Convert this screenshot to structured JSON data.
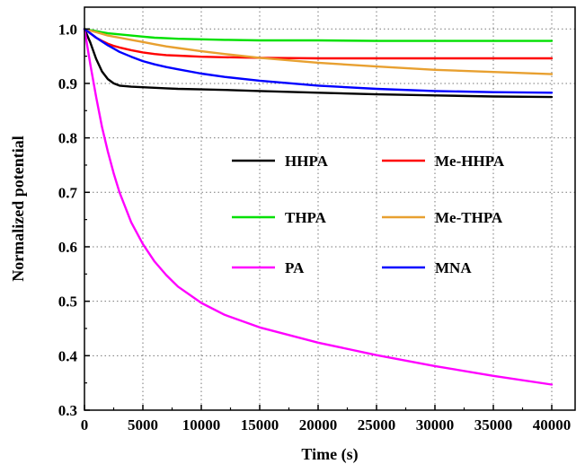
{
  "chart_data": {
    "type": "line",
    "xlabel": "Time (s)",
    "ylabel": "Normalized potential",
    "xlim": [
      0,
      42000
    ],
    "ylim": [
      0.3,
      1.04
    ],
    "grid": true,
    "grid_style": "dotted",
    "legend_placement": "center-right, two columns",
    "x_ticks": [
      0,
      5000,
      10000,
      15000,
      20000,
      25000,
      30000,
      35000,
      40000
    ],
    "x_tick_labels": [
      "0",
      "5000",
      "10000",
      "15000",
      "20000",
      "25000",
      "30000",
      "35000",
      "40000"
    ],
    "y_ticks": [
      0.3,
      0.4,
      0.5,
      0.6,
      0.7,
      0.8,
      0.9,
      1.0
    ],
    "y_tick_labels": [
      "0.3",
      "0.4",
      "0.5",
      "0.6",
      "0.7",
      "0.8",
      "0.9",
      "1.0"
    ],
    "x": [
      0,
      500,
      1000,
      1500,
      2000,
      2500,
      3000,
      4000,
      5000,
      6000,
      7000,
      8000,
      10000,
      12000,
      15000,
      20000,
      25000,
      30000,
      35000,
      40000
    ],
    "series": [
      {
        "name": "HHPA",
        "color": "#000000",
        "values": [
          1.0,
          0.975,
          0.945,
          0.922,
          0.908,
          0.9,
          0.896,
          0.894,
          0.893,
          0.892,
          0.891,
          0.89,
          0.889,
          0.888,
          0.886,
          0.883,
          0.88,
          0.878,
          0.876,
          0.875
        ]
      },
      {
        "name": "Me-HHPA",
        "color": "#ff0000",
        "values": [
          1.0,
          0.992,
          0.984,
          0.978,
          0.973,
          0.969,
          0.966,
          0.961,
          0.957,
          0.954,
          0.952,
          0.951,
          0.949,
          0.948,
          0.947,
          0.946,
          0.946,
          0.946,
          0.946,
          0.946
        ]
      },
      {
        "name": "THPA",
        "color": "#00e000",
        "values": [
          1.0,
          0.998,
          0.996,
          0.994,
          0.992,
          0.991,
          0.99,
          0.988,
          0.986,
          0.984,
          0.983,
          0.982,
          0.981,
          0.98,
          0.979,
          0.979,
          0.978,
          0.978,
          0.978,
          0.978
        ]
      },
      {
        "name": "Me-THPA",
        "color": "#e8a030",
        "values": [
          1.0,
          0.997,
          0.994,
          0.991,
          0.988,
          0.986,
          0.984,
          0.98,
          0.976,
          0.972,
          0.968,
          0.965,
          0.959,
          0.954,
          0.947,
          0.938,
          0.931,
          0.925,
          0.921,
          0.917
        ]
      },
      {
        "name": "PA",
        "color": "#ff00ff",
        "values": [
          1.0,
          0.935,
          0.875,
          0.82,
          0.775,
          0.735,
          0.7,
          0.645,
          0.605,
          0.573,
          0.548,
          0.527,
          0.497,
          0.475,
          0.452,
          0.424,
          0.401,
          0.381,
          0.363,
          0.347
        ]
      },
      {
        "name": "MNA",
        "color": "#0000ff",
        "values": [
          1.0,
          0.992,
          0.984,
          0.977,
          0.97,
          0.964,
          0.958,
          0.949,
          0.941,
          0.935,
          0.93,
          0.926,
          0.918,
          0.912,
          0.905,
          0.896,
          0.89,
          0.886,
          0.884,
          0.883
        ]
      }
    ]
  }
}
